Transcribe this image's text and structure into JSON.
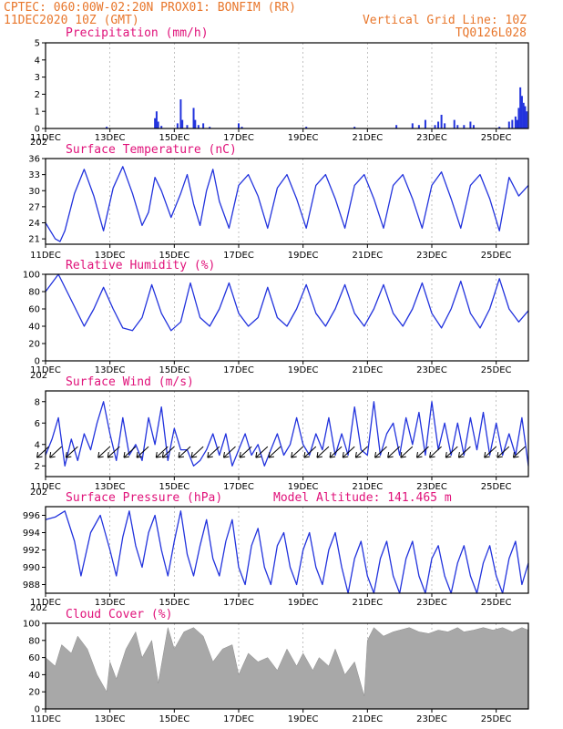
{
  "header": {
    "line1_left": "CPTEC:   060:00W-02:20N   PROX01: BONFIM (RR)",
    "line2_left": "11DEC2020 10Z (GMT)",
    "line2_right": "Vertical Grid Line: 10Z",
    "line3_right": "TQ0126L028"
  },
  "x_ticks": [
    "11DEC",
    "13DEC",
    "15DEC",
    "17DEC",
    "19DEC",
    "21DEC",
    "23DEC",
    "25DEC"
  ],
  "year_stub": "202",
  "colors": {
    "line": "#2233dd",
    "cloud": "#a8a8a8",
    "title": "#e0127a",
    "header": "#e8762b",
    "arrow": "#000000"
  },
  "chart_data": [
    {
      "id": "precip",
      "type": "bar",
      "title": "Precipitation (mm/h)",
      "ylim": [
        0,
        5
      ],
      "yticks": [
        0,
        1,
        2,
        3,
        4,
        5
      ],
      "x_start_day": 0,
      "x_end_day": 15,
      "bars": [
        [
          1.9,
          0.1
        ],
        [
          3.4,
          0.6
        ],
        [
          3.45,
          1.0
        ],
        [
          3.5,
          0.4
        ],
        [
          3.6,
          0.15
        ],
        [
          4.1,
          0.3
        ],
        [
          4.2,
          1.7
        ],
        [
          4.25,
          0.5
        ],
        [
          4.4,
          0.2
        ],
        [
          4.6,
          1.2
        ],
        [
          4.65,
          0.5
        ],
        [
          4.75,
          0.2
        ],
        [
          4.9,
          0.3
        ],
        [
          5.1,
          0.1
        ],
        [
          6.0,
          0.3
        ],
        [
          6.1,
          0.1
        ],
        [
          8.1,
          0.1
        ],
        [
          9.6,
          0.1
        ],
        [
          10.9,
          0.2
        ],
        [
          11.4,
          0.3
        ],
        [
          11.6,
          0.2
        ],
        [
          11.8,
          0.5
        ],
        [
          12.1,
          0.2
        ],
        [
          12.2,
          0.4
        ],
        [
          12.3,
          0.8
        ],
        [
          12.4,
          0.3
        ],
        [
          12.7,
          0.5
        ],
        [
          12.8,
          0.2
        ],
        [
          13.0,
          0.2
        ],
        [
          13.2,
          0.4
        ],
        [
          13.3,
          0.2
        ],
        [
          14.1,
          0.1
        ],
        [
          14.4,
          0.4
        ],
        [
          14.5,
          0.5
        ],
        [
          14.6,
          0.7
        ],
        [
          14.65,
          0.5
        ],
        [
          14.7,
          1.2
        ],
        [
          14.75,
          2.4
        ],
        [
          14.8,
          1.9
        ],
        [
          14.85,
          1.5
        ],
        [
          14.9,
          1.3
        ],
        [
          14.95,
          1.0
        ]
      ]
    },
    {
      "id": "temp",
      "type": "line",
      "title": "Surface Temperature (nC)",
      "ylim": [
        20,
        36
      ],
      "yticks": [
        21,
        24,
        27,
        30,
        33,
        36
      ],
      "x": [
        0,
        0.15,
        0.3,
        0.45,
        0.6,
        0.9,
        1.2,
        1.5,
        1.8,
        2.1,
        2.4,
        2.7,
        3.0,
        3.2,
        3.4,
        3.6,
        3.9,
        4.2,
        4.4,
        4.6,
        4.8,
        5.0,
        5.2,
        5.4,
        5.7,
        6.0,
        6.3,
        6.6,
        6.9,
        7.2,
        7.5,
        7.8,
        8.1,
        8.4,
        8.7,
        9.0,
        9.3,
        9.6,
        9.9,
        10.2,
        10.5,
        10.8,
        11.1,
        11.4,
        11.7,
        12.0,
        12.3,
        12.6,
        12.9,
        13.2,
        13.5,
        13.8,
        14.1,
        14.4,
        14.7,
        15.0
      ],
      "y": [
        24,
        22.5,
        21.0,
        20.5,
        22.5,
        29.5,
        34.0,
        29.0,
        22.5,
        30.5,
        34.5,
        29.5,
        23.5,
        26,
        32.5,
        30,
        25,
        29.5,
        33,
        27.5,
        23.5,
        30,
        34,
        28,
        23,
        31,
        33,
        29,
        23,
        30.5,
        33,
        28.5,
        23,
        31,
        33,
        28.5,
        23,
        31,
        33,
        28.5,
        23,
        31,
        33,
        28.5,
        23,
        31,
        33.5,
        28.5,
        23,
        31,
        33,
        28.5,
        22.5,
        32.5,
        29,
        31
      ]
    },
    {
      "id": "rh",
      "type": "line",
      "title": "Relative Humidity (%)",
      "ylim": [
        0,
        100
      ],
      "yticks": [
        0,
        20,
        40,
        60,
        80,
        100
      ],
      "x": [
        0,
        0.4,
        0.8,
        1.2,
        1.5,
        1.8,
        2.1,
        2.4,
        2.7,
        3.0,
        3.3,
        3.6,
        3.9,
        4.2,
        4.5,
        4.8,
        5.1,
        5.4,
        5.7,
        6.0,
        6.3,
        6.6,
        6.9,
        7.2,
        7.5,
        7.8,
        8.1,
        8.4,
        8.7,
        9.0,
        9.3,
        9.6,
        9.9,
        10.2,
        10.5,
        10.8,
        11.1,
        11.4,
        11.7,
        12.0,
        12.3,
        12.6,
        12.9,
        13.2,
        13.5,
        13.8,
        14.1,
        14.4,
        14.7,
        15.0
      ],
      "y": [
        80,
        100,
        70,
        40,
        60,
        85,
        60,
        38,
        35,
        50,
        88,
        55,
        35,
        45,
        90,
        50,
        40,
        60,
        90,
        55,
        40,
        50,
        85,
        50,
        40,
        60,
        88,
        55,
        40,
        60,
        88,
        55,
        40,
        60,
        88,
        55,
        40,
        60,
        90,
        55,
        38,
        60,
        92,
        55,
        38,
        60,
        95,
        60,
        45,
        58
      ]
    },
    {
      "id": "wind",
      "type": "line",
      "title": "Surface Wind (m/s)",
      "ylim": [
        1,
        9
      ],
      "yticks": [
        2,
        4,
        6,
        8
      ],
      "x": [
        0,
        0.2,
        0.4,
        0.6,
        0.8,
        1.0,
        1.2,
        1.4,
        1.6,
        1.8,
        2.0,
        2.2,
        2.4,
        2.6,
        2.8,
        3.0,
        3.2,
        3.4,
        3.6,
        3.8,
        4.0,
        4.2,
        4.4,
        4.6,
        4.8,
        5.0,
        5.2,
        5.4,
        5.6,
        5.8,
        6.0,
        6.2,
        6.4,
        6.6,
        6.8,
        7.0,
        7.2,
        7.4,
        7.6,
        7.8,
        8.0,
        8.2,
        8.4,
        8.6,
        8.8,
        9.0,
        9.2,
        9.4,
        9.6,
        9.8,
        10.0,
        10.2,
        10.4,
        10.6,
        10.8,
        11.0,
        11.2,
        11.4,
        11.6,
        11.8,
        12.0,
        12.2,
        12.4,
        12.6,
        12.8,
        13.0,
        13.2,
        13.4,
        13.6,
        13.8,
        14.0,
        14.2,
        14.4,
        14.6,
        14.8,
        15.0
      ],
      "y": [
        3,
        4.5,
        6.5,
        2,
        4.5,
        2.5,
        5,
        3.5,
        6,
        8,
        5,
        2.5,
        6.5,
        3,
        4,
        2.5,
        6.5,
        4,
        7.5,
        2.5,
        5.5,
        3.5,
        3.5,
        2,
        2.5,
        3.5,
        5,
        3,
        5,
        2,
        3.5,
        5,
        3,
        4,
        2,
        3.5,
        5,
        3,
        4,
        6.5,
        4,
        3,
        5,
        3.5,
        6.5,
        3,
        5,
        3,
        7.5,
        3.5,
        3,
        8,
        3,
        5,
        6,
        3,
        6.5,
        4,
        7,
        3,
        8,
        3.5,
        6,
        3,
        6,
        3,
        6.5,
        3.5,
        7,
        3,
        6,
        3,
        5,
        3,
        6.5,
        2
      ],
      "arrow_days": [
        0.1,
        0.5,
        1.0,
        2.0,
        2.3,
        2.8,
        3.2,
        3.8,
        4.0,
        4.5,
        4.9,
        5.4,
        5.9,
        6.4,
        6.9,
        7.3,
        8.0,
        8.4,
        8.8,
        9.2,
        9.6,
        10.0,
        10.6,
        11.0,
        11.4,
        11.9,
        12.3,
        12.8,
        13.2,
        14.0,
        14.4,
        14.9
      ]
    },
    {
      "id": "pressure",
      "type": "line",
      "title": "Surface Pressure (hPa)",
      "annotation": "Model Altitude: 141.465 m",
      "ylim": [
        987,
        997
      ],
      "yticks": [
        988,
        990,
        992,
        994,
        996
      ],
      "x": [
        0,
        0.3,
        0.6,
        0.9,
        1.1,
        1.4,
        1.7,
        2.0,
        2.2,
        2.4,
        2.6,
        2.8,
        3.0,
        3.2,
        3.4,
        3.6,
        3.8,
        4.0,
        4.2,
        4.4,
        4.6,
        4.8,
        5.0,
        5.2,
        5.4,
        5.6,
        5.8,
        6.0,
        6.2,
        6.4,
        6.6,
        6.8,
        7.0,
        7.2,
        7.4,
        7.6,
        7.8,
        8.0,
        8.2,
        8.4,
        8.6,
        8.8,
        9.0,
        9.2,
        9.4,
        9.6,
        9.8,
        10.0,
        10.2,
        10.4,
        10.6,
        10.8,
        11.0,
        11.2,
        11.4,
        11.6,
        11.8,
        12.0,
        12.2,
        12.4,
        12.6,
        12.8,
        13.0,
        13.2,
        13.4,
        13.6,
        13.8,
        14.0,
        14.2,
        14.4,
        14.6,
        14.8,
        15.0
      ],
      "y": [
        995.5,
        995.8,
        996.5,
        993,
        989,
        994,
        996,
        992,
        989,
        993.5,
        996.5,
        992.5,
        990,
        994,
        996,
        992,
        989,
        993,
        996.5,
        991.5,
        989,
        992.5,
        995.5,
        991,
        989,
        993,
        995.5,
        990,
        988,
        992.5,
        994.5,
        990,
        988,
        992.5,
        994,
        990,
        988,
        992,
        994,
        990,
        988,
        992,
        994,
        990,
        987,
        991,
        993,
        989,
        987,
        991,
        993,
        989,
        987,
        991,
        993,
        989,
        987,
        991,
        992.5,
        989,
        987,
        990.5,
        992.5,
        989,
        987,
        990.5,
        992.5,
        989,
        987,
        991,
        993,
        988,
        990.5
      ]
    },
    {
      "id": "cloud",
      "type": "area",
      "title": "Cloud Cover (%)",
      "ylim": [
        0,
        100
      ],
      "yticks": [
        0,
        20,
        40,
        60,
        80,
        100
      ],
      "x": [
        0,
        0.3,
        0.5,
        0.8,
        1.0,
        1.3,
        1.6,
        1.9,
        2.0,
        2.2,
        2.5,
        2.8,
        3.0,
        3.3,
        3.5,
        3.8,
        4.0,
        4.3,
        4.6,
        4.9,
        5.2,
        5.5,
        5.8,
        6.0,
        6.3,
        6.6,
        6.9,
        7.2,
        7.5,
        7.8,
        8.0,
        8.3,
        8.5,
        8.8,
        9.0,
        9.3,
        9.6,
        9.9,
        10.0,
        10.2,
        10.5,
        10.8,
        11.0,
        11.3,
        11.6,
        11.9,
        12.2,
        12.5,
        12.8,
        13.0,
        13.3,
        13.6,
        13.9,
        14.2,
        14.5,
        14.8,
        15.0
      ],
      "y": [
        60,
        50,
        75,
        65,
        85,
        70,
        40,
        20,
        55,
        35,
        70,
        90,
        60,
        80,
        30,
        95,
        70,
        90,
        95,
        85,
        55,
        70,
        75,
        40,
        65,
        55,
        60,
        45,
        70,
        50,
        65,
        45,
        60,
        50,
        70,
        40,
        55,
        15,
        80,
        95,
        85,
        90,
        92,
        95,
        90,
        88,
        92,
        90,
        95,
        90,
        92,
        95,
        92,
        95,
        90,
        95,
        92
      ]
    }
  ]
}
